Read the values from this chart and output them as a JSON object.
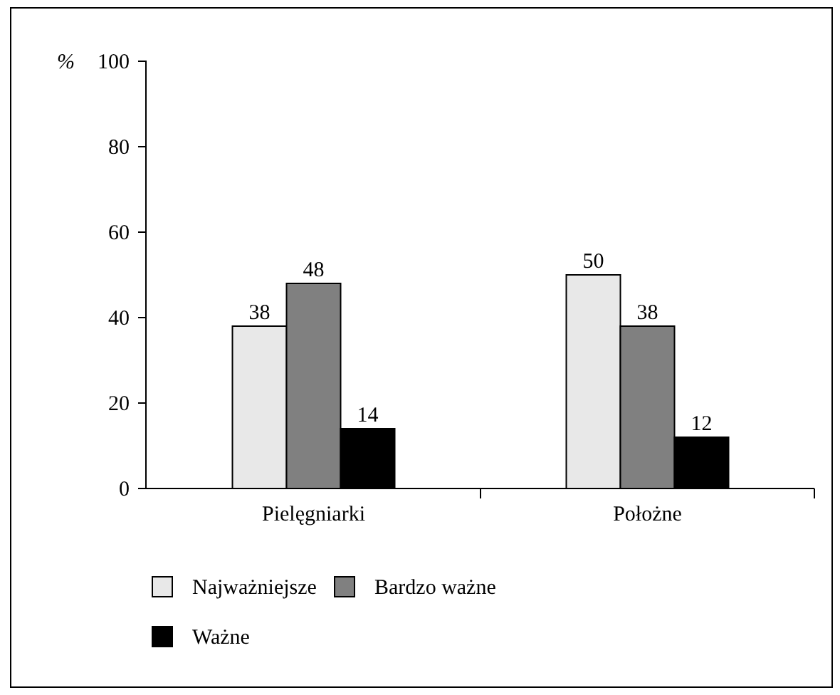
{
  "chart_data": {
    "type": "bar",
    "ylabel": "%",
    "categories": [
      "Pielęgniarki",
      "Położne"
    ],
    "series": [
      {
        "name": "Najważniejsze",
        "color": "#e8e8e8",
        "values": [
          38,
          50
        ]
      },
      {
        "name": "Bardzo ważne",
        "color": "#808080",
        "values": [
          48,
          38
        ]
      },
      {
        "name": "Ważne",
        "color": "#000000",
        "values": [
          14,
          12
        ]
      }
    ],
    "ylim": [
      0,
      100
    ],
    "yticks": [
      0,
      20,
      40,
      60,
      80,
      100
    ],
    "grid": false,
    "data_labels": true,
    "legend": "bottom"
  }
}
